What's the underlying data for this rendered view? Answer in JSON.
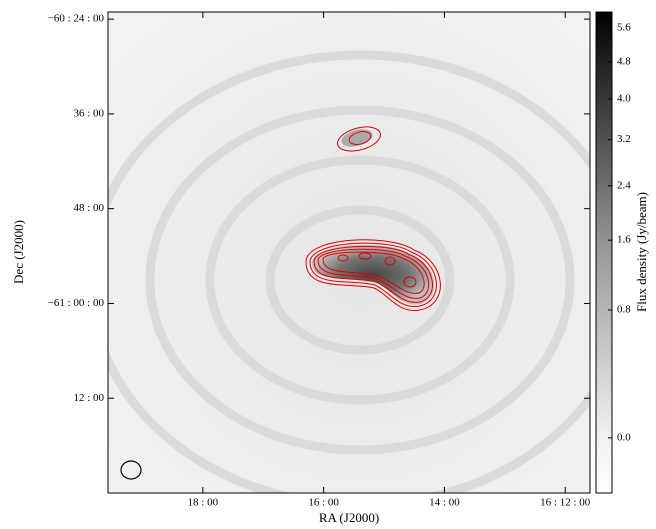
{
  "chart_data": {
    "type": "image",
    "xlabel": "RA (J2000)",
    "ylabel": "Dec (J2000)",
    "colorbar_label": "Flux density (Jy/beam)",
    "xlim": [
      19.57,
      11.59
    ],
    "xticks": [
      {
        "value": 18,
        "label": "18 : 00"
      },
      {
        "value": 16,
        "label": "16 : 00"
      },
      {
        "value": 14,
        "label": "14 : 00"
      },
      {
        "value": 12,
        "label": "16 : 12 : 00"
      }
    ],
    "ylim": [
      -61.4,
      -60.385
    ],
    "yticks": [
      {
        "value": -60.4,
        "label": "−60 : 24 : 00"
      },
      {
        "value": -60.6,
        "label": "36 : 00"
      },
      {
        "value": -60.8,
        "label": "48 : 00"
      },
      {
        "value": -61.0,
        "label": "−61 : 00 : 00"
      },
      {
        "value": -61.2,
        "label": "12 : 00"
      }
    ],
    "colorbar_lim": [
      -0.08,
      6.0
    ],
    "colorbar_scale": "sqrt",
    "colorbar_ticks": [
      {
        "value": 5.6,
        "label": "5.6"
      },
      {
        "value": 4.8,
        "label": "4.8"
      },
      {
        "value": 4.0,
        "label": "4.0"
      },
      {
        "value": 3.2,
        "label": "3.2"
      },
      {
        "value": 2.4,
        "label": "2.4"
      },
      {
        "value": 1.6,
        "label": "1.6"
      },
      {
        "value": 0.8,
        "label": "0.8"
      },
      {
        "value": 0.0,
        "label": "0.0"
      }
    ],
    "contour_color": "#e00000"
  }
}
